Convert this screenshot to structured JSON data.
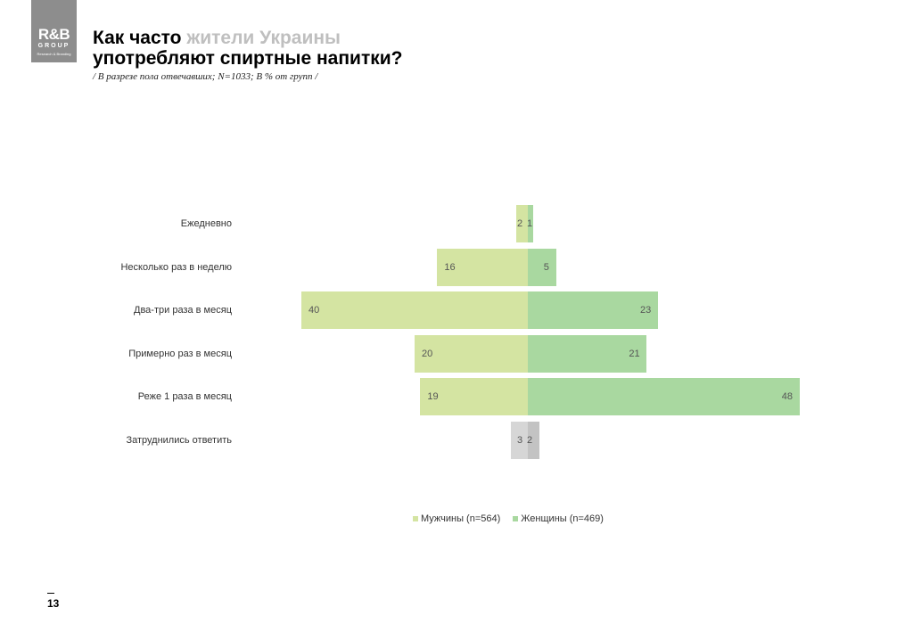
{
  "logo": {
    "main": "R&B",
    "group": "GROUP",
    "sub": "Research & Branding"
  },
  "title": {
    "part1": "Как часто ",
    "highlight": "жители Украины",
    "line2": "употребляют спиртные напитки?"
  },
  "subtitle": "/ В разрезе пола отвечавших; N=1033; В % от групп /",
  "page_number": "13",
  "colors": {
    "men": "#d4e4a2",
    "women": "#a9d8a0",
    "dk_men": "#d6d6d6",
    "dk_women": "#c3c3c3"
  },
  "chart_data": {
    "type": "bar",
    "categories": [
      "Ежедневно",
      "Несколько раз в неделю",
      "Два-три раза в месяц",
      "Примерно раз в месяц",
      "Реже 1 раза в месяц",
      "Затруднились ответить"
    ],
    "series": [
      {
        "name": "Мужчины (n=564)",
        "values": [
          2,
          16,
          40,
          20,
          19,
          3
        ]
      },
      {
        "name": "Женщины (n=469)",
        "values": [
          1,
          5,
          23,
          21,
          48,
          2
        ]
      }
    ],
    "title": "",
    "xlabel": "",
    "ylabel": ""
  }
}
